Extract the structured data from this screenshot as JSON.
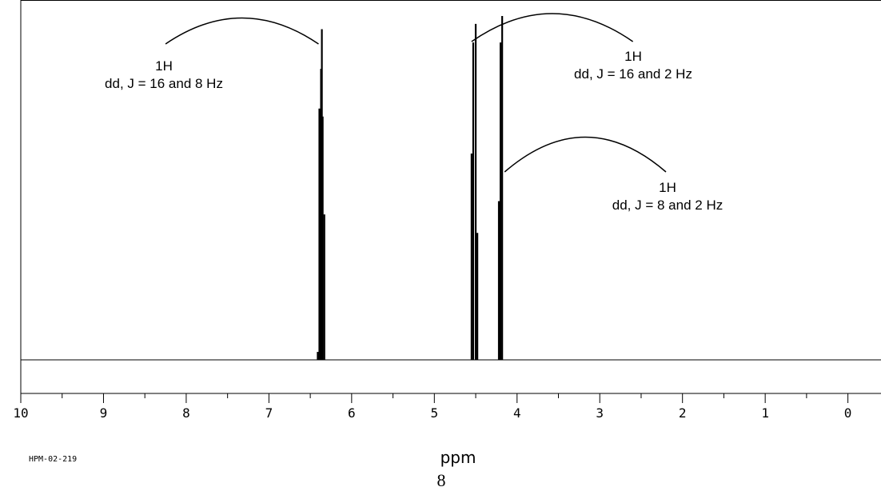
{
  "chart_data": {
    "type": "line",
    "xlabel": "ppm",
    "xlim": [
      10,
      -0.4
    ],
    "x_reversed": true,
    "ticks": [
      10,
      9,
      8,
      7,
      6,
      5,
      4,
      3,
      2,
      1,
      0
    ],
    "tick_labels": [
      "10",
      "9",
      "8",
      "7",
      "6",
      "5",
      "4",
      "3",
      "2",
      "1",
      "0"
    ],
    "baseline": 0,
    "ylim": [
      0,
      1.3
    ],
    "grid": false,
    "series": [
      {
        "peaks": [
          {
            "x": 6.41,
            "y": 0.03
          },
          {
            "x": 6.39,
            "y": 0.95
          },
          {
            "x": 6.37,
            "y": 1.1
          },
          {
            "x": 6.36,
            "y": 1.25
          },
          {
            "x": 6.35,
            "y": 0.92
          },
          {
            "x": 6.33,
            "y": 0.55
          },
          {
            "x": 4.55,
            "y": 0.78
          },
          {
            "x": 4.53,
            "y": 1.2
          },
          {
            "x": 4.5,
            "y": 1.27
          },
          {
            "x": 4.48,
            "y": 0.48
          },
          {
            "x": 4.22,
            "y": 0.6
          },
          {
            "x": 4.2,
            "y": 1.2
          },
          {
            "x": 4.18,
            "y": 1.3
          }
        ]
      }
    ],
    "annotations": [
      {
        "text": [
          "1H",
          "dd, J = 16 and 8 Hz"
        ],
        "arc": [
          8.25,
          6.4
        ]
      },
      {
        "text": [
          "1H",
          "dd, J = 16 and 2 Hz"
        ],
        "arc": [
          4.55,
          2.6
        ]
      },
      {
        "text": [
          "1H",
          "dd, J = 8 and 2 Hz"
        ],
        "arc": [
          4.15,
          2.2
        ]
      }
    ]
  },
  "footer": {
    "spectrum_code": "HPM-02-219",
    "page_number": "8"
  }
}
